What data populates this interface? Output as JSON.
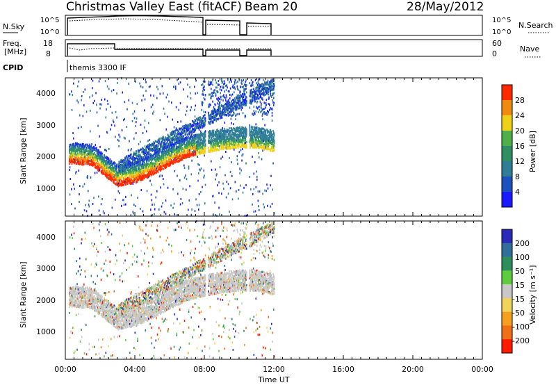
{
  "header": {
    "title": "Christmas Valley East (fitACF)",
    "beam": "Beam 20",
    "date": "28/May/2012"
  },
  "top_panels": {
    "nsky_label": "N.Sky",
    "nsky_ticks": [
      "10^5",
      "10^0"
    ],
    "nsearch_label": "N.Search",
    "nsearch_ticks": [
      "10^5",
      "10^0"
    ],
    "freq_label_1": "Freq.",
    "freq_label_2": "[MHz]",
    "freq_ticks": [
      "18",
      "8"
    ],
    "nave_label": "Nave",
    "nave_ticks": [
      "60",
      "0"
    ],
    "cpid_label": "CPID",
    "cpid_text": "themis 3300 IF"
  },
  "colors": {
    "power_scale": [
      "#1a1aff",
      "#1e4fbf",
      "#2f7e95",
      "#2f8f63",
      "#4fb04a",
      "#f0d11a",
      "#f08a10",
      "#ff2a00"
    ],
    "velocity_scale": [
      "#2a2ab8",
      "#2f6f9a",
      "#2f8f5a",
      "#5fcc3f",
      "#c8c8c8",
      "#f0d35a",
      "#f5a020",
      "#f07018",
      "#ff1a00"
    ]
  },
  "chart_data": [
    {
      "type": "heatmap",
      "name": "power",
      "ylabel": "Slant Range [km]",
      "yticks": [
        "1000",
        "2000",
        "3000",
        "4000"
      ],
      "ylim": [
        180,
        4500
      ],
      "xlim_hours": [
        0,
        24
      ],
      "colorbar_label": "Power [dB]",
      "colorbar_ticks": [
        "4",
        "8",
        "12",
        "16",
        "20",
        "24",
        "28"
      ],
      "colorbar_range": [
        0,
        32
      ],
      "echo_bands": [
        {
          "t": 0.5,
          "r": 1800
        },
        {
          "t": 1.5,
          "r": 1750
        },
        {
          "t": 2.2,
          "r": 1450
        },
        {
          "t": 3.0,
          "r": 1100
        },
        {
          "t": 4.0,
          "r": 1200
        },
        {
          "t": 5.0,
          "r": 1450
        },
        {
          "t": 6.0,
          "r": 1750
        },
        {
          "t": 7.0,
          "r": 2000
        },
        {
          "t": 8.0,
          "r": 2150
        },
        {
          "t": 9.0,
          "r": 2250
        },
        {
          "t": 10.0,
          "r": 2300
        },
        {
          "t": 11.0,
          "r": 2300
        },
        {
          "t": 11.8,
          "r": 2200
        }
      ]
    },
    {
      "type": "heatmap",
      "name": "velocity",
      "ylabel": "Slant Range [km]",
      "yticks": [
        "1000",
        "2000",
        "3000",
        "4000"
      ],
      "ylim": [
        180,
        4500
      ],
      "xlabel": "Time UT",
      "xticks": [
        "00:00",
        "04:00",
        "08:00",
        "12:00",
        "16:00",
        "20:00",
        "00:00"
      ],
      "xlim_hours": [
        0,
        24
      ],
      "colorbar_label": "Velocity [m s⁻¹]",
      "colorbar_ticks": [
        "200",
        "100",
        "50",
        "15",
        "-15",
        "-50",
        "-100",
        "-200"
      ]
    }
  ]
}
